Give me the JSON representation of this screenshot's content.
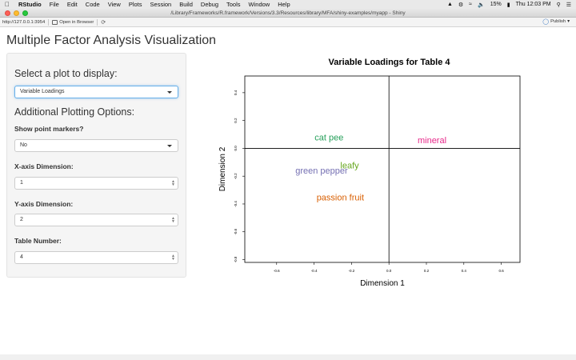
{
  "menubar": {
    "app_name": "RStudio",
    "items": [
      "File",
      "Edit",
      "Code",
      "View",
      "Plots",
      "Session",
      "Build",
      "Debug",
      "Tools",
      "Window",
      "Help"
    ],
    "battery": "15%",
    "clock": "Thu 12:03 PM"
  },
  "window": {
    "title": "/Library/Frameworks/R.framework/Versions/3.3/Resources/library/MFA/shiny-examples/myapp - Shiny"
  },
  "toolbar": {
    "url": "http://127.0.0.1:3954",
    "open_browser": "Open in Browser",
    "publish": "Publish"
  },
  "app": {
    "title": "Multiple Factor Analysis Visualization",
    "select_plot_heading": "Select a plot to display:",
    "plot_type_value": "Variable Loadings",
    "options_heading": "Additional Plotting Options:",
    "point_markers_label": "Show point markers?",
    "point_markers_value": "No",
    "x_dim_label": "X-axis Dimension:",
    "x_dim_value": "1",
    "y_dim_label": "Y-axis Dimension:",
    "y_dim_value": "2",
    "table_label": "Table Number:",
    "table_value": "4"
  },
  "chart_data": {
    "type": "scatter",
    "title": "Variable Loadings for Table 4",
    "xlabel": "Dimension 1",
    "ylabel": "Dimension 2",
    "xlim": [
      -0.77,
      0.7
    ],
    "ylim": [
      -0.82,
      0.52
    ],
    "x_ticks": [
      -0.6,
      -0.4,
      -0.2,
      0.0,
      0.2,
      0.4,
      0.6
    ],
    "y_ticks": [
      -0.8,
      -0.6,
      -0.4,
      -0.2,
      0.0,
      0.2,
      0.4
    ],
    "x_tick_labels": [
      "-0.6",
      "-0.4",
      "-0.2",
      "0.0",
      "0.2",
      "0.4",
      "0.6"
    ],
    "y_tick_labels": [
      "-0.8",
      "-0.6",
      "-0.4",
      "-0.2",
      "0.0",
      "0.2",
      "0.4"
    ],
    "reference_lines": {
      "x": 0,
      "y": 0
    },
    "points": [
      {
        "label": "cat pee",
        "x": -0.32,
        "y": 0.08,
        "color": "#27a05b"
      },
      {
        "label": "mineral",
        "x": 0.23,
        "y": 0.06,
        "color": "#e7298a"
      },
      {
        "label": "leafy",
        "x": -0.21,
        "y": -0.12,
        "color": "#66a61e"
      },
      {
        "label": "green pepper",
        "x": -0.36,
        "y": -0.16,
        "color": "#7570b3"
      },
      {
        "label": "passion fruit",
        "x": -0.26,
        "y": -0.35,
        "color": "#d95f02"
      }
    ]
  }
}
